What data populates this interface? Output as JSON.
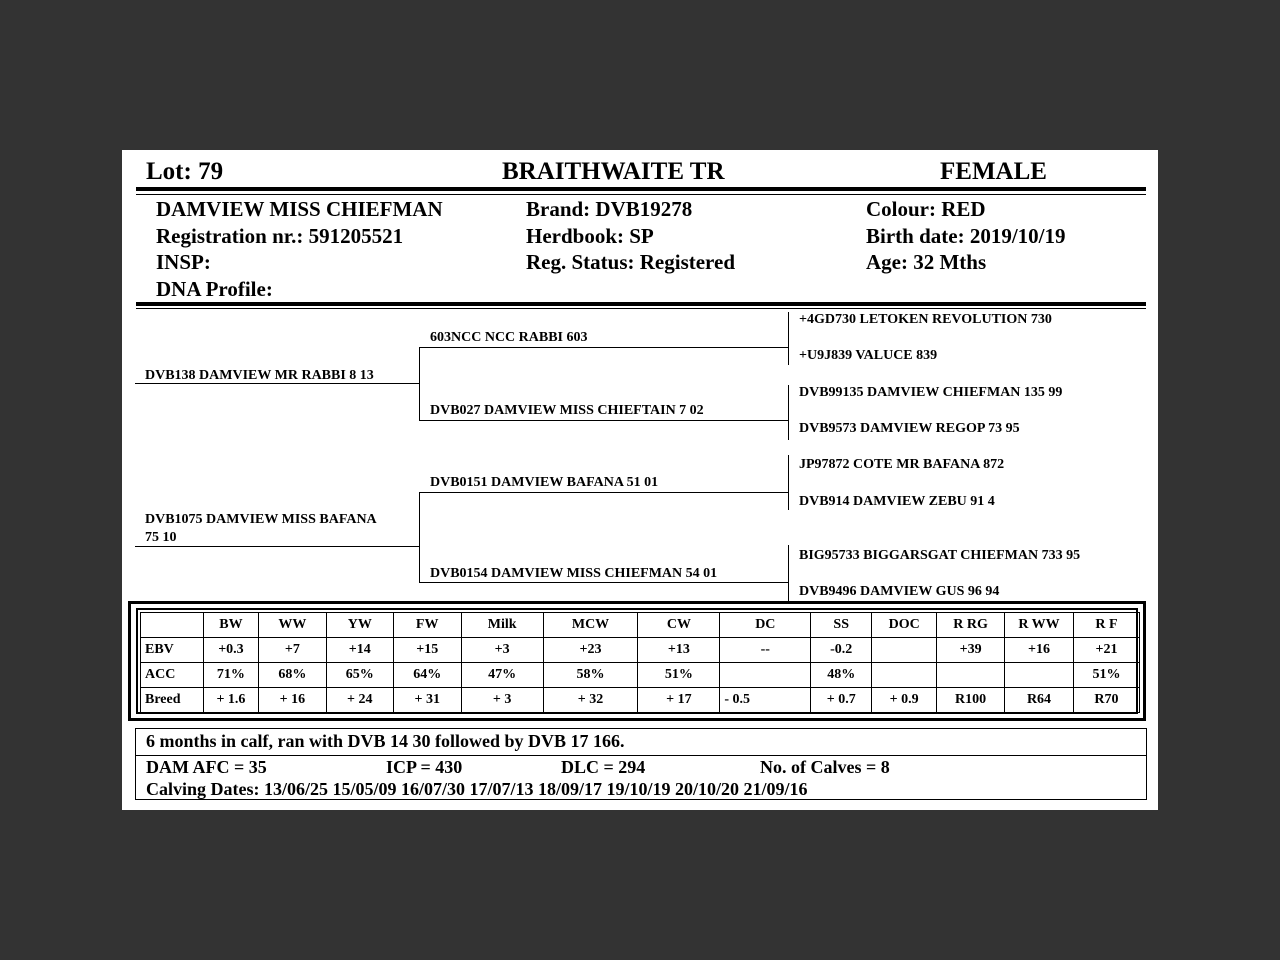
{
  "header": {
    "lot": "Lot:  79",
    "breeder": "BRAITHWAITE TR",
    "sex": "FEMALE"
  },
  "info": {
    "name": "DAMVIEW MISS CHIEFMAN",
    "registration": "Registration nr.: 591205521",
    "insp": "INSP:",
    "dna": "DNA Profile:",
    "brand": "Brand:  DVB19278",
    "herdbook": "Herdbook: SP",
    "reg_status": "Reg. Status: Registered",
    "colour": "Colour:  RED",
    "birth_date": "Birth date:  2019/10/19",
    "age": "Age: 32 Mths"
  },
  "pedigree": {
    "sire": "DVB138 DAMVIEW MR RABBI 8 13",
    "dam_line1": "DVB1075 DAMVIEW MISS BAFANA",
    "dam_line2": "75 10",
    "ss": "603NCC NCC RABBI 603",
    "sd": "DVB027 DAMVIEW MISS CHIEFTAIN 7 02",
    "ds": "DVB0151 DAMVIEW BAFANA 51 01",
    "dd": "DVB0154 DAMVIEW MISS CHIEFMAN 54 01",
    "g3": [
      "+4GD730 LETOKEN REVOLUTION 730",
      "+U9J839 VALUCE 839",
      "DVB99135 DAMVIEW CHIEFMAN 135 99",
      "DVB9573 DAMVIEW REGOP 73 95",
      "JP97872 COTE MR BAFANA 872",
      "DVB914 DAMVIEW ZEBU 91 4",
      "BIG95733 BIGGARSGAT CHIEFMAN 733 95",
      "DVB9496 DAMVIEW GUS 96 94"
    ]
  },
  "ebv_table": {
    "headers": [
      "",
      "BW",
      "WW",
      "YW",
      "FW",
      "Milk",
      "MCW",
      "CW",
      "DC",
      "SS",
      "DOC",
      "R RG",
      "R WW",
      "R F"
    ],
    "rows": [
      [
        "EBV",
        "+0.3",
        "+7",
        "+14",
        "+15",
        "+3",
        "+23",
        "+13",
        "--",
        "-0.2",
        "",
        "+39",
        "+16",
        "+21"
      ],
      [
        "ACC",
        "71%",
        "68%",
        "65%",
        "64%",
        "47%",
        "58%",
        "51%",
        "",
        "48%",
        "",
        "",
        "",
        "51%"
      ],
      [
        "Breed",
        "+ 1.6",
        "+ 16",
        "+ 24",
        "+ 31",
        "+ 3",
        "+ 32",
        "+ 17",
        "- 0.5",
        "+ 0.7",
        "+ 0.9",
        "R100",
        "R64",
        "R70"
      ]
    ]
  },
  "notes": {
    "comment": "6 months in calf, ran with DVB 14 30 followed by DVB 17 166.",
    "dam_afc": "DAM AFC = 35",
    "icp": "ICP = 430",
    "dlc": "DLC = 294",
    "calves": "No. of Calves = 8",
    "calving_dates": "Calving Dates: 13/06/25  15/05/09  16/07/30  17/07/13  18/09/17  19/10/19  20/10/20  21/09/16"
  }
}
